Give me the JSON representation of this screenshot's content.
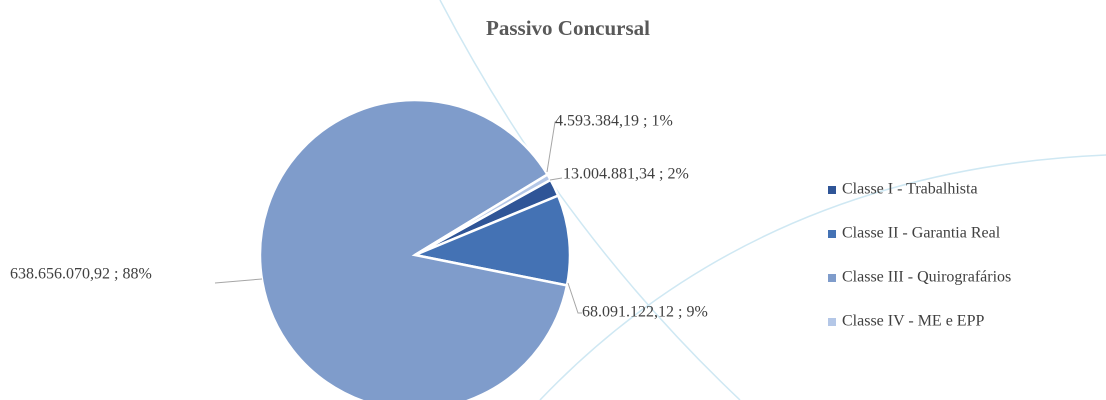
{
  "chart_data": {
    "type": "pie",
    "title": "Passivo Concursal",
    "categories": [
      "Classe I - Trabalhista",
      "Classe II - Garantia Real",
      "Classe III - Quirografários",
      "Classe IV - ME e EPP"
    ],
    "values": [
      13004881.34,
      68091122.12,
      638656070.92,
      4593384.19
    ],
    "value_labels": [
      "13.004.881,34 ; 2%",
      "68.091.122,12 ; 9%",
      "638.656.070,92 ; 88%",
      "4.593.384,19 ; 1%"
    ],
    "colors": [
      "#2f5597",
      "#4472b4",
      "#7f9ccb",
      "#b4c7e7"
    ],
    "legend": "right"
  }
}
